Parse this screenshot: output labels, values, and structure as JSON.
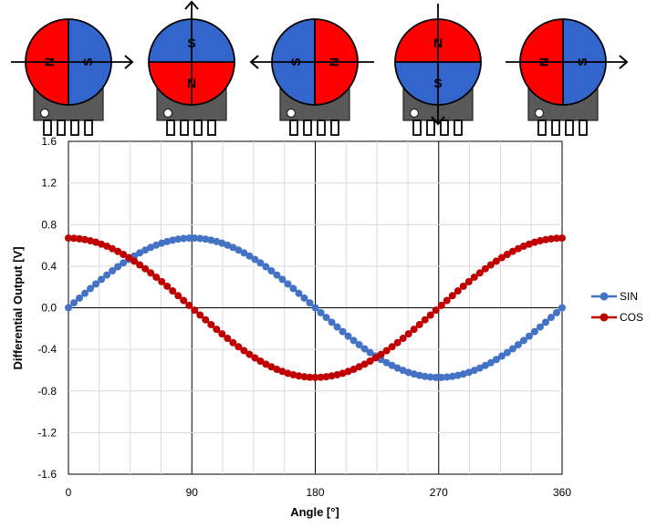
{
  "chart_data": {
    "type": "line",
    "title": "",
    "xlabel": "Angle [°]",
    "ylabel": "Differential Output [V]",
    "xlim": [
      0,
      360
    ],
    "ylim": [
      -1.6,
      1.6
    ],
    "x_ticks": [
      "0",
      "90",
      "180",
      "270",
      "360"
    ],
    "y_ticks": [
      "1.6",
      "1.2",
      "0.8",
      "0.4",
      "0.0",
      "-0.4",
      "-0.8",
      "-1.2",
      "-1.6"
    ],
    "grid": true,
    "legend_position": "right",
    "x": [
      0,
      4,
      8,
      12,
      16,
      20,
      24,
      28,
      32,
      36,
      40,
      44,
      48,
      52,
      56,
      60,
      64,
      68,
      72,
      76,
      80,
      84,
      88,
      92,
      96,
      100,
      104,
      108,
      112,
      116,
      120,
      124,
      128,
      132,
      136,
      140,
      144,
      148,
      152,
      156,
      160,
      164,
      168,
      172,
      176,
      180,
      184,
      188,
      192,
      196,
      200,
      204,
      208,
      212,
      216,
      220,
      224,
      228,
      232,
      236,
      240,
      244,
      248,
      252,
      256,
      260,
      264,
      268,
      272,
      276,
      280,
      284,
      288,
      292,
      296,
      300,
      304,
      308,
      312,
      316,
      320,
      324,
      328,
      332,
      336,
      340,
      344,
      348,
      352,
      356,
      360
    ],
    "series": [
      {
        "name": "SIN",
        "color": "#4472C4",
        "amplitude": 0.67,
        "function": "sin",
        "values": [
          0.0,
          0.047,
          0.093,
          0.139,
          0.185,
          0.229,
          0.273,
          0.315,
          0.355,
          0.394,
          0.431,
          0.465,
          0.498,
          0.528,
          0.555,
          0.58,
          0.602,
          0.621,
          0.637,
          0.65,
          0.66,
          0.666,
          0.67,
          0.67,
          0.666,
          0.66,
          0.65,
          0.637,
          0.621,
          0.602,
          0.58,
          0.555,
          0.528,
          0.498,
          0.465,
          0.431,
          0.394,
          0.355,
          0.315,
          0.273,
          0.229,
          0.185,
          0.139,
          0.093,
          0.047,
          0.0,
          -0.047,
          -0.093,
          -0.139,
          -0.185,
          -0.229,
          -0.273,
          -0.315,
          -0.355,
          -0.394,
          -0.431,
          -0.465,
          -0.498,
          -0.528,
          -0.555,
          -0.58,
          -0.602,
          -0.621,
          -0.637,
          -0.65,
          -0.66,
          -0.666,
          -0.67,
          -0.67,
          -0.666,
          -0.66,
          -0.65,
          -0.637,
          -0.621,
          -0.602,
          -0.58,
          -0.555,
          -0.528,
          -0.498,
          -0.465,
          -0.431,
          -0.394,
          -0.355,
          -0.315,
          -0.273,
          -0.229,
          -0.185,
          -0.139,
          -0.093,
          -0.047,
          0.0
        ]
      },
      {
        "name": "COS",
        "color": "#C00000",
        "amplitude": 0.67,
        "function": "cos",
        "values": [
          0.67,
          0.668,
          0.663,
          0.655,
          0.644,
          0.63,
          0.612,
          0.592,
          0.568,
          0.542,
          0.513,
          0.482,
          0.448,
          0.412,
          0.375,
          0.335,
          0.294,
          0.251,
          0.207,
          0.162,
          0.116,
          0.07,
          0.023,
          -0.023,
          -0.07,
          -0.116,
          -0.162,
          -0.207,
          -0.251,
          -0.294,
          -0.335,
          -0.375,
          -0.412,
          -0.448,
          -0.482,
          -0.513,
          -0.542,
          -0.568,
          -0.592,
          -0.612,
          -0.63,
          -0.644,
          -0.655,
          -0.663,
          -0.668,
          -0.67,
          -0.668,
          -0.663,
          -0.655,
          -0.644,
          -0.63,
          -0.612,
          -0.592,
          -0.568,
          -0.542,
          -0.513,
          -0.482,
          -0.448,
          -0.412,
          -0.375,
          -0.335,
          -0.294,
          -0.251,
          -0.207,
          -0.162,
          -0.116,
          -0.07,
          -0.023,
          0.023,
          0.07,
          0.116,
          0.162,
          0.207,
          0.251,
          0.294,
          0.335,
          0.375,
          0.412,
          0.448,
          0.482,
          0.513,
          0.542,
          0.568,
          0.592,
          0.612,
          0.63,
          0.644,
          0.655,
          0.663,
          0.668,
          0.67
        ]
      }
    ]
  },
  "sensor_diagrams": [
    {
      "angle": 0,
      "arrow": "right",
      "poles": [
        {
          "label": "N",
          "color": "#FF0000"
        },
        {
          "label": "S",
          "color": "#3366CC"
        }
      ]
    },
    {
      "angle": 90,
      "arrow": "up",
      "poles": [
        {
          "label": "S",
          "color": "#3366CC"
        },
        {
          "label": "N",
          "color": "#FF0000"
        }
      ]
    },
    {
      "angle": 180,
      "arrow": "left",
      "poles": [
        {
          "label": "S",
          "color": "#3366CC"
        },
        {
          "label": "N",
          "color": "#FF0000"
        }
      ]
    },
    {
      "angle": 270,
      "arrow": "down",
      "poles": [
        {
          "label": "N",
          "color": "#FF0000"
        },
        {
          "label": "S",
          "color": "#3366CC"
        }
      ]
    },
    {
      "angle": 360,
      "arrow": "right",
      "poles": [
        {
          "label": "N",
          "color": "#FF0000"
        },
        {
          "label": "S",
          "color": "#3366CC"
        }
      ]
    }
  ],
  "colors": {
    "chip_body": "#595959",
    "gridline": "#D9D9D9",
    "major_gridline": "#000000"
  }
}
